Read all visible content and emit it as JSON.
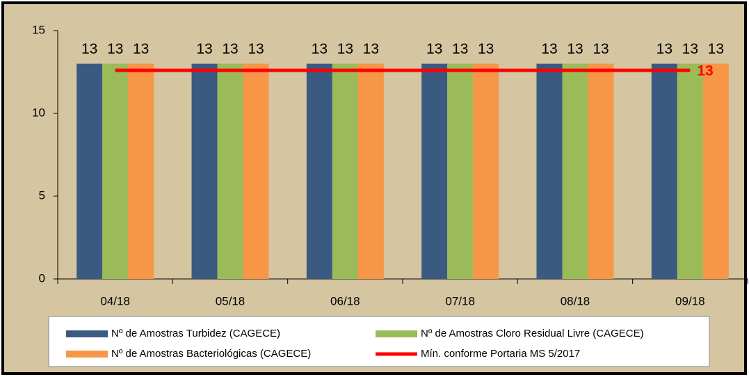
{
  "chart_data": {
    "type": "bar",
    "categories": [
      "04/18",
      "05/18",
      "06/18",
      "07/18",
      "08/18",
      "09/18"
    ],
    "series": [
      {
        "name": "Nº de Amostras Turbidez (CAGECE)",
        "color": "#3a5a82",
        "values": [
          13,
          13,
          13,
          13,
          13,
          13
        ]
      },
      {
        "name": "Nº de Amostras Cloro Residual Livre (CAGECE)",
        "color": "#9bbb59",
        "values": [
          13,
          13,
          13,
          13,
          13,
          13
        ]
      },
      {
        "name": "Nº de Amostras Bacteriológicas (CAGECE)",
        "color": "#f79646",
        "values": [
          13,
          13,
          13,
          13,
          13,
          13
        ]
      },
      {
        "name": "Mín. conforme Portaria MS 5/2017",
        "color": "#ff0000",
        "type": "line",
        "values": [
          12.6,
          12.6,
          12.6,
          12.6,
          12.6,
          12.6
        ],
        "value_labels": [
          null,
          null,
          null,
          null,
          null,
          "13"
        ]
      }
    ],
    "ylim": [
      0,
      15
    ],
    "yticks": [
      0,
      5,
      10,
      15
    ],
    "grid": false,
    "legend": "bottom"
  }
}
